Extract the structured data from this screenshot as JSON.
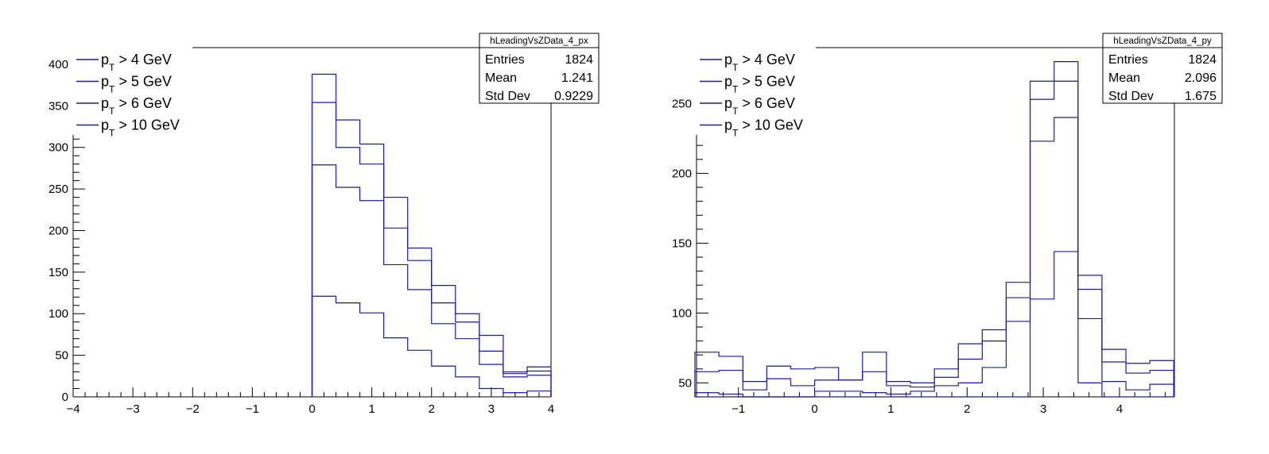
{
  "colors": {
    "histogram_line": "#1a1aa6",
    "axis": "#000000",
    "background": "#ffffff"
  },
  "chart_data": [
    {
      "type": "histogram",
      "xlim": [
        -4,
        4
      ],
      "ylim": [
        0,
        420
      ],
      "x_ticks": [
        -4,
        -3,
        -2,
        -1,
        0,
        1,
        2,
        3,
        4
      ],
      "y_ticks": [
        0,
        50,
        100,
        150,
        200,
        250,
        300,
        350,
        400
      ],
      "bin_edges": [
        0,
        0.4,
        0.8,
        1.2,
        1.6,
        2.0,
        2.4,
        2.8,
        3.2,
        3.6,
        4.0
      ],
      "legend": [
        {
          "p": "p",
          "sub": "T",
          "rest": " > 4 GeV"
        },
        {
          "p": "p",
          "sub": "T",
          "rest": " > 5 GeV"
        },
        {
          "p": "p",
          "sub": "T",
          "rest": " > 6 GeV"
        },
        {
          "p": "p",
          "sub": "T",
          "rest": " > 10 GeV"
        }
      ],
      "series": [
        {
          "values": [
            388,
            333,
            304,
            240,
            179,
            134,
            100,
            74,
            30,
            36
          ]
        },
        {
          "values": [
            354,
            300,
            280,
            203,
            164,
            113,
            90,
            55,
            28,
            31
          ]
        },
        {
          "values": [
            279,
            252,
            236,
            159,
            129,
            88,
            70,
            39,
            24,
            26
          ]
        },
        {
          "values": [
            121,
            113,
            101,
            71,
            56,
            37,
            24,
            10,
            5,
            7
          ]
        }
      ],
      "stats": {
        "title": "hLeadingVsZData_4_px",
        "rows": [
          {
            "label": "Entries",
            "value": "1824"
          },
          {
            "label": "Mean",
            "value": "1.241"
          },
          {
            "label": "Std Dev",
            "value": "0.9229"
          }
        ]
      }
    },
    {
      "type": "histogram",
      "xlim": [
        -1.55,
        4.72
      ],
      "ylim": [
        40,
        290
      ],
      "x_ticks": [
        -1,
        0,
        1,
        2,
        3,
        4
      ],
      "y_ticks": [
        50,
        100,
        150,
        200,
        250
      ],
      "bin_edges": [
        -1.571,
        -1.257,
        -0.942,
        -0.628,
        -0.314,
        0,
        0.314,
        0.628,
        0.942,
        1.257,
        1.571,
        1.885,
        2.199,
        2.513,
        2.827,
        3.142,
        3.456,
        3.77,
        4.084,
        4.398,
        4.712
      ],
      "legend": [
        {
          "p": "p",
          "sub": "T",
          "rest": " > 4 GeV"
        },
        {
          "p": "p",
          "sub": "T",
          "rest": " > 5 GeV"
        },
        {
          "p": "p",
          "sub": "T",
          "rest": " > 6 GeV"
        },
        {
          "p": "p",
          "sub": "T",
          "rest": " > 10 GeV"
        }
      ],
      "series": [
        {
          "values": [
            72,
            69,
            51,
            62,
            60,
            61,
            52,
            72,
            51,
            50,
            60,
            78,
            88,
            122,
            266,
            280,
            127,
            74,
            64,
            66
          ]
        },
        {
          "values": [
            58,
            59,
            45,
            53,
            48,
            52,
            52,
            58,
            48,
            47,
            54,
            67,
            80,
            111,
            253,
            266,
            117,
            65,
            57,
            59
          ]
        },
        {
          "values": [
            43,
            42,
            40,
            38,
            37,
            44,
            44,
            43,
            42,
            44,
            48,
            50,
            61,
            94,
            223,
            240,
            96,
            51,
            45,
            49
          ]
        },
        {
          "values": [
            37,
            36,
            35,
            30,
            30,
            33,
            33,
            35,
            34,
            35,
            35,
            35,
            36,
            37,
            110,
            144,
            50,
            36,
            35,
            37
          ]
        }
      ],
      "stats": {
        "title": "hLeadingVsZData_4_py",
        "rows": [
          {
            "label": "Entries",
            "value": "1824"
          },
          {
            "label": "Mean",
            "value": "2.096"
          },
          {
            "label": "Std Dev",
            "value": "1.675"
          }
        ]
      }
    }
  ]
}
